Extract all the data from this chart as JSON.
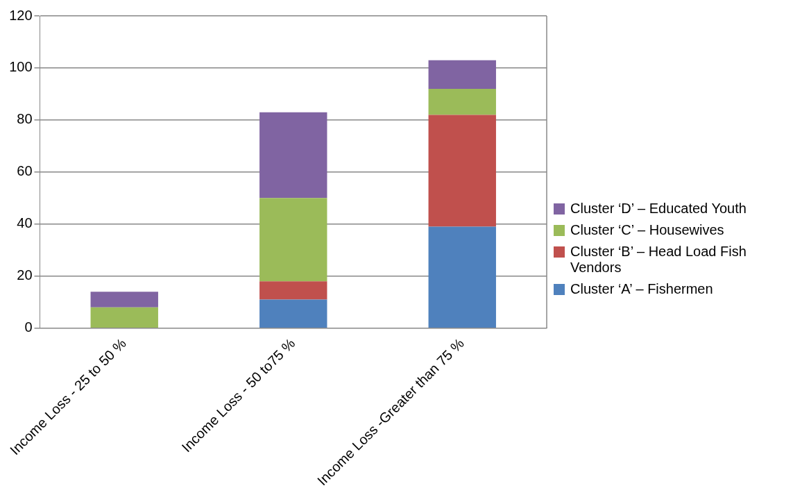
{
  "chart_data": {
    "type": "bar",
    "stacked": true,
    "categories": [
      "Income Loss - 25 to 50 %",
      "Income Loss - 50 to75 %",
      "Income Loss -Greater than 75 %"
    ],
    "series": [
      {
        "name": "Cluster ‘A’ – Fishermen",
        "color": "#4f81bd",
        "values": [
          0,
          11,
          39
        ]
      },
      {
        "name": "Cluster ‘B’ – Head Load Fish Vendors",
        "color": "#c0504d",
        "values": [
          0,
          7,
          43
        ]
      },
      {
        "name": "Cluster ‘C’ – Housewives",
        "color": "#9bbb59",
        "values": [
          8,
          32,
          10
        ]
      },
      {
        "name": "Cluster ‘D’ – Educated Youth",
        "color": "#8064a2",
        "values": [
          6,
          33,
          11
        ]
      }
    ],
    "ylim": [
      0,
      120
    ],
    "yticks": [
      0,
      20,
      40,
      60,
      80,
      100,
      120
    ],
    "grid": "y",
    "legend": "right"
  }
}
